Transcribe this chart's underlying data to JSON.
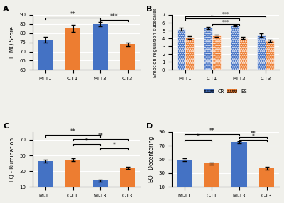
{
  "panel_A": {
    "title": "A",
    "categories": [
      "MI-T1",
      "C-T1",
      "MI-T3",
      "C-T3"
    ],
    "values": [
      76.5,
      82.5,
      85.0,
      74.0
    ],
    "errors": [
      1.5,
      2.0,
      1.2,
      1.0
    ],
    "colors": [
      "#4472C4",
      "#ED7D31",
      "#4472C4",
      "#ED7D31"
    ],
    "ylabel": "FFMQ Score",
    "ylim": [
      60,
      90
    ],
    "yticks": [
      60,
      65,
      70,
      75,
      80,
      85,
      90
    ]
  },
  "panel_B": {
    "title": "B",
    "categories": [
      "MI-T1",
      "C-T1",
      "MI-T3",
      "C-T3"
    ],
    "CR_values": [
      5.2,
      5.35,
      5.65,
      4.4
    ],
    "ES_values": [
      4.1,
      4.35,
      4.05,
      3.7
    ],
    "CR_errors": [
      0.15,
      0.15,
      0.1,
      0.2
    ],
    "ES_errors": [
      0.2,
      0.15,
      0.15,
      0.15
    ],
    "ylabel": "Emotion regulation subscales",
    "ylim": [
      0,
      7
    ],
    "yticks": [
      0,
      1,
      2,
      3,
      4,
      5,
      6,
      7
    ]
  },
  "panel_C": {
    "title": "C",
    "categories": [
      "MI-T1",
      "C-T1",
      "MI-T3",
      "C-T3"
    ],
    "values": [
      43.0,
      44.5,
      18.0,
      34.0
    ],
    "errors": [
      2.0,
      2.0,
      1.5,
      1.5
    ],
    "colors": [
      "#4472C4",
      "#ED7D31",
      "#4472C4",
      "#ED7D31"
    ],
    "ylabel": "EQ - Rumination",
    "ylim": [
      10,
      80
    ],
    "yticks": [
      10,
      30,
      50,
      70
    ]
  },
  "panel_D": {
    "title": "D",
    "categories": [
      "MI-T1",
      "C-T1",
      "MI-T3",
      "C-T3"
    ],
    "values": [
      50.0,
      44.0,
      75.0,
      37.0
    ],
    "errors": [
      2.0,
      2.0,
      1.5,
      2.0
    ],
    "colors": [
      "#4472C4",
      "#ED7D31",
      "#4472C4",
      "#ED7D31"
    ],
    "ylabel": "EQ - Decentering",
    "ylim": [
      10,
      90
    ],
    "yticks": [
      10,
      30,
      50,
      70,
      90
    ]
  },
  "blue_color": "#4472C4",
  "orange_color": "#ED7D31",
  "bg_color": "#F0F0EB",
  "bar_width": 0.55,
  "grouped_bar_width": 0.32,
  "grouped_bar_gap": 0.38
}
